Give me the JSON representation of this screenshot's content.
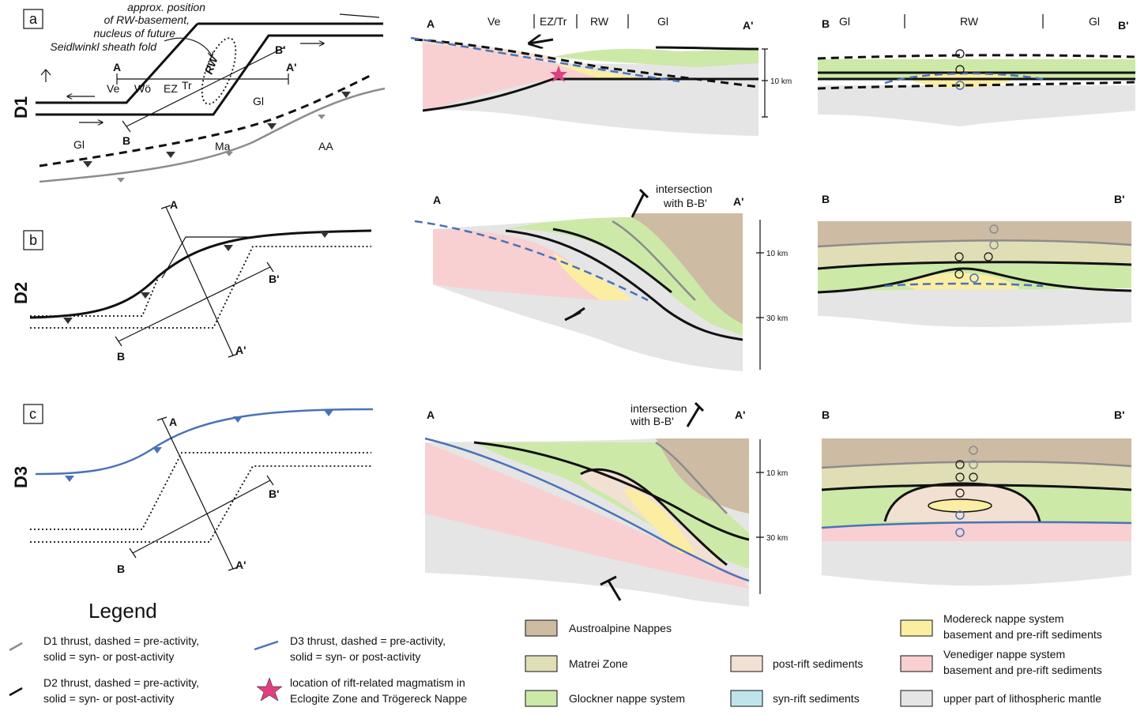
{
  "rows": [
    {
      "phase": "D1",
      "map_letter": "a"
    },
    {
      "phase": "D2",
      "map_letter": "b"
    },
    {
      "phase": "D3",
      "map_letter": "c"
    }
  ],
  "map_a": {
    "note": [
      "approx. position",
      "of RW-basement,",
      "nucleus of future",
      "Seidlwinkl sheath fold"
    ],
    "rw": "RW",
    "labels": {
      "ve": "Ve",
      "wo": "Wö",
      "ez": "EZ",
      "tr": "Tr",
      "gl1": "Gl",
      "gl2": "Gl",
      "ma": "Ma",
      "aa": "AA"
    }
  },
  "section_ends": {
    "a": "A",
    "a_prime": "A'",
    "b": "B",
    "b_prime": "B'"
  },
  "sections_aa": {
    "zones": {
      "ve": "Ve",
      "ez_tr": "EZ/Tr",
      "rw": "RW",
      "gl": "Gl"
    },
    "intersection": [
      "intersection",
      "with B-B'"
    ],
    "scale": {
      "km10": "10 km",
      "km30": "30 km"
    }
  },
  "sections_bb": {
    "zones": {
      "gl_left": "Gl",
      "rw": "RW",
      "gl_right": "Gl"
    }
  },
  "legend": {
    "title": "Legend",
    "d1": [
      "D1 thrust, dashed = pre-activity,",
      "solid = syn- or post-activity"
    ],
    "d2": [
      "D2 thrust, dashed = pre-activity,",
      "solid = syn- or post-activity"
    ],
    "d3": [
      "D3 thrust, dashed = pre-activity,",
      "solid = syn- or post-activity"
    ],
    "star": [
      "location of rift-related magmatism in",
      "Eclogite Zone and Trögereck Nappe"
    ],
    "units": {
      "austroalpine": "Austroalpine Nappes",
      "matrei": "Matrei Zone",
      "glockner": "Glockner nappe system",
      "postrift": "post-rift sediments",
      "synrift": "syn-rift sediments",
      "modereck": [
        "Modereck nappe system",
        "basement and pre-rift sediments"
      ],
      "venediger": [
        "Venediger nappe system",
        "basement and pre-rift sediments"
      ],
      "mantle": "upper part of lithospheric mantle"
    },
    "colors": {
      "austroalpine": "#cdbba4",
      "matrei": "#e0deb5",
      "glockner": "#cce9a8",
      "postrift": "#f2e0d2",
      "synrift": "#bfe4ec",
      "modereck": "#fbeea2",
      "venediger": "#f8d0d2",
      "mantle": "#e5e5e5",
      "d1_line": "#8c8c8c",
      "d3_line": "#4a72b8",
      "star": "#e0407f"
    }
  }
}
